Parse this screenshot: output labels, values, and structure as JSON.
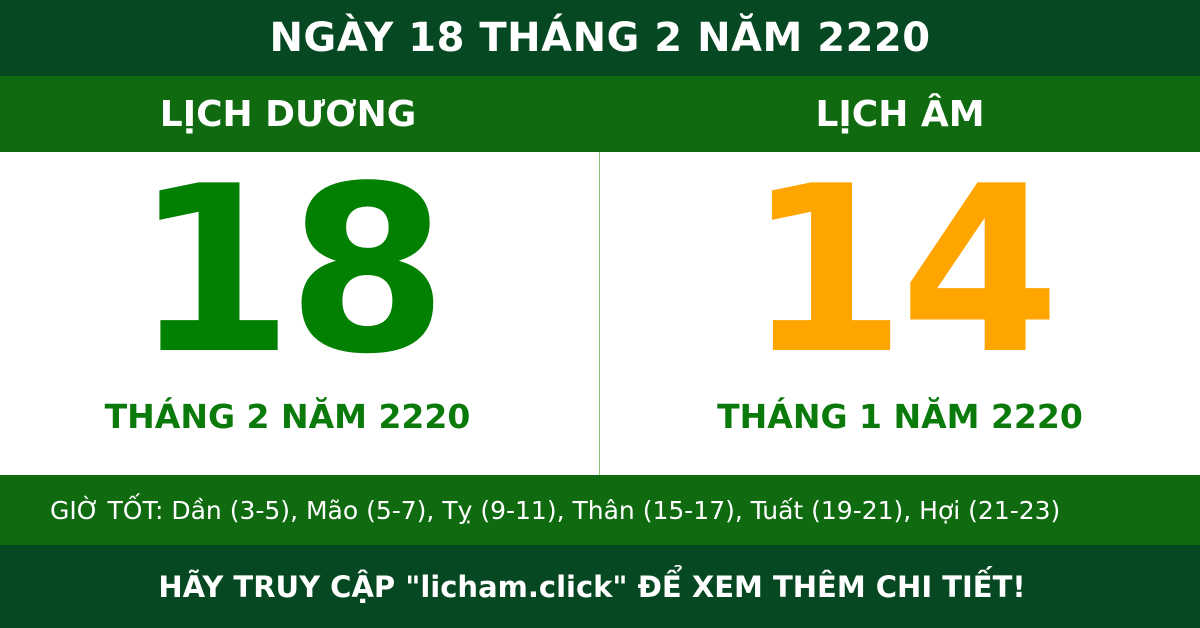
{
  "title": "NGÀY 18 THÁNG 2 NĂM 2220",
  "solar": {
    "heading": "LỊCH DƯƠNG",
    "day": "18",
    "month_year": "THÁNG 2 NĂM 2220"
  },
  "lunar": {
    "heading": "LỊCH ÂM",
    "day": "14",
    "month_year": "THÁNG 1 NĂM 2220"
  },
  "good_hours": "GIỜ TỐT: Dần (3-5), Mão (5-7), Tỵ (9-11), Thân (15-17), Tuất (19-21), Hợi (21-23)",
  "footer": "HÃY TRUY CẬP \"licham.click\" ĐỂ XEM THÊM CHI TIẾT!",
  "colors": {
    "dark_green": "#054822",
    "green": "#0f6a10",
    "solar_day": "#028002",
    "lunar_day": "#ffa500"
  }
}
